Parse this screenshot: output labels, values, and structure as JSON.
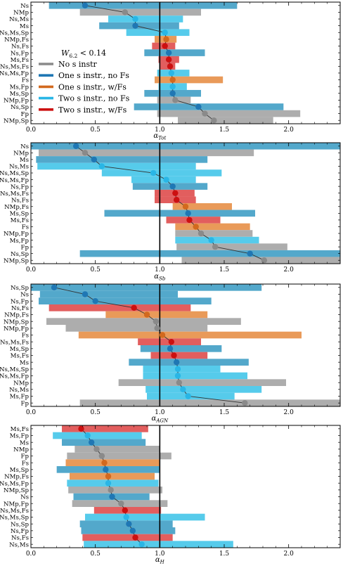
{
  "colors": {
    "none": "#a9a9a9",
    "one_nofs": "#4aa3c8",
    "one_fs": "#e89550",
    "two_nofs": "#4dc8ea",
    "two_fs": "#e05555",
    "none_dot": "#8a8a8a",
    "one_nofs_dot": "#1f77b4",
    "one_fs_dot": "#d2691e",
    "two_nofs_dot": "#29b6e6",
    "two_fs_dot": "#cc1010",
    "line": "#333333",
    "refline": "#000000"
  },
  "legend": {
    "title": "W_{6.2} < 0.14",
    "entries": [
      {
        "label": "No s instr",
        "cat": "none"
      },
      {
        "label": "One s instr., no Fs",
        "cat": "one_nofs"
      },
      {
        "label": "One s instr., w/Fs",
        "cat": "one_fs"
      },
      {
        "label": "Two s instr., no Fs",
        "cat": "two_nofs"
      },
      {
        "label": "Two s instr., w/Fs",
        "cat": "two_fs"
      }
    ]
  },
  "chart_data": [
    {
      "type": "bar",
      "xlabel": "α_Tot",
      "xlim": [
        0,
        2.4
      ],
      "xticks": [
        "0.0",
        "0.5",
        "1.0",
        "1.5",
        "2.0"
      ],
      "refline": 1.0,
      "rows": [
        {
          "label": "Ns",
          "cat": "one_nofs",
          "lo": 0.14,
          "hi": 1.6,
          "val": 0.42
        },
        {
          "label": "NMp",
          "cat": "none",
          "lo": 0.38,
          "hi": 1.32,
          "val": 0.73
        },
        {
          "label": "Ns,Ms",
          "cat": "two_nofs",
          "lo": 0.6,
          "hi": 1.18,
          "val": 0.81
        },
        {
          "label": "Ms",
          "cat": "one_nofs",
          "lo": 0.53,
          "hi": 1.15,
          "val": 0.81
        },
        {
          "label": "Ns,Ms,Sp",
          "cat": "two_nofs",
          "lo": 0.74,
          "hi": 1.23,
          "val": 1.04
        },
        {
          "label": "NMp,Fs",
          "cat": "one_fs",
          "lo": 0.96,
          "hi": 1.13,
          "val": 1.05
        },
        {
          "label": "Ns,Fs",
          "cat": "two_fs",
          "lo": 0.94,
          "hi": 1.12,
          "val": 1.04
        },
        {
          "label": "Ns,Fp",
          "cat": "one_nofs",
          "lo": 0.88,
          "hi": 1.35,
          "val": 1.07
        },
        {
          "label": "Ms,Fs",
          "cat": "two_fs",
          "lo": 0.99,
          "hi": 1.15,
          "val": 1.07
        },
        {
          "label": "Ns,Ms,Fs",
          "cat": "two_fs",
          "lo": 1.0,
          "hi": 1.12,
          "val": 1.08
        },
        {
          "label": "Ns,Ms,Fp",
          "cat": "two_nofs",
          "lo": 0.98,
          "hi": 1.23,
          "val": 1.09
        },
        {
          "label": "Fs",
          "cat": "one_fs",
          "lo": 0.96,
          "hi": 1.49,
          "val": 1.1
        },
        {
          "label": "Ms,Fp",
          "cat": "two_nofs",
          "lo": 0.99,
          "hi": 1.21,
          "val": 1.1
        },
        {
          "label": "Ms,Sp",
          "cat": "one_nofs",
          "lo": 0.88,
          "hi": 1.32,
          "val": 1.1
        },
        {
          "label": "NMp,Fp",
          "cat": "none",
          "lo": 0.98,
          "hi": 1.24,
          "val": 1.12
        },
        {
          "label": "Ns,Sp",
          "cat": "one_nofs",
          "lo": 0.8,
          "hi": 1.96,
          "val": 1.3
        },
        {
          "label": "Fp",
          "cat": "none",
          "lo": 0.98,
          "hi": 2.09,
          "val": 1.35
        },
        {
          "label": "NMp,Sp",
          "cat": "none",
          "lo": 1.14,
          "hi": 1.88,
          "val": 1.42
        }
      ]
    },
    {
      "type": "bar",
      "xlabel": "α_Sb",
      "xlim": [
        0,
        2.4
      ],
      "xticks": [
        "0.0",
        "0.5",
        "1.0",
        "1.5",
        "2.0"
      ],
      "refline": 1.0,
      "rows": [
        {
          "label": "Ns",
          "cat": "one_nofs",
          "lo": 0.0,
          "hi": 2.4,
          "val": 0.35
        },
        {
          "label": "NMp",
          "cat": "none",
          "lo": 0.06,
          "hi": 1.73,
          "val": 0.42
        },
        {
          "label": "Ms",
          "cat": "one_nofs",
          "lo": 0.04,
          "hi": 1.37,
          "val": 0.49
        },
        {
          "label": "Ns,Ms",
          "cat": "two_nofs",
          "lo": 0.05,
          "hi": 1.28,
          "val": 0.55
        },
        {
          "label": "Ns,Ms,Sp",
          "cat": "two_nofs",
          "lo": 0.55,
          "hi": 1.48,
          "val": 0.95
        },
        {
          "label": "Ns,Ms,Fp",
          "cat": "two_nofs",
          "lo": 0.78,
          "hi": 1.28,
          "val": 1.05
        },
        {
          "label": "Ns,Fp",
          "cat": "one_nofs",
          "lo": 0.79,
          "hi": 1.37,
          "val": 1.1
        },
        {
          "label": "Ns,Ms,Fs",
          "cat": "two_fs",
          "lo": 0.96,
          "hi": 1.27,
          "val": 1.12
        },
        {
          "label": "Ns,Fs",
          "cat": "two_fs",
          "lo": 0.96,
          "hi": 1.28,
          "val": 1.13
        },
        {
          "label": "NMp,Fs",
          "cat": "one_fs",
          "lo": 1.1,
          "hi": 1.56,
          "val": 1.2
        },
        {
          "label": "Ms,Sp",
          "cat": "one_nofs",
          "lo": 0.57,
          "hi": 1.74,
          "val": 1.22
        },
        {
          "label": "Ms,Fs",
          "cat": "two_fs",
          "lo": 1.05,
          "hi": 1.47,
          "val": 1.23
        },
        {
          "label": "Fs",
          "cat": "one_fs",
          "lo": 1.12,
          "hi": 1.7,
          "val": 1.28
        },
        {
          "label": "NMp,Fp",
          "cat": "none",
          "lo": 1.12,
          "hi": 1.72,
          "val": 1.32
        },
        {
          "label": "Ms,Fp",
          "cat": "two_nofs",
          "lo": 1.12,
          "hi": 1.77,
          "val": 1.4
        },
        {
          "label": "Fp",
          "cat": "none",
          "lo": 1.13,
          "hi": 1.99,
          "val": 1.43
        },
        {
          "label": "Ns,Sp",
          "cat": "one_nofs",
          "lo": 0.38,
          "hi": 2.4,
          "val": 1.7
        },
        {
          "label": "NMp,Sp",
          "cat": "none",
          "lo": 1.17,
          "hi": 2.4,
          "val": 1.81
        }
      ]
    },
    {
      "type": "bar",
      "xlabel": "α_AGN",
      "xlim": [
        0,
        2.4
      ],
      "xticks": [
        "0.0",
        "0.5",
        "1.0",
        "1.5",
        "2.0"
      ],
      "refline": 1.0,
      "rows": [
        {
          "label": "Ns,Sp",
          "cat": "one_nofs",
          "lo": 0.0,
          "hi": 1.79,
          "val": 0.18
        },
        {
          "label": "Ns",
          "cat": "one_nofs",
          "lo": 0.07,
          "hi": 1.14,
          "val": 0.42
        },
        {
          "label": "Ns,Fp",
          "cat": "one_nofs",
          "lo": 0.06,
          "hi": 1.4,
          "val": 0.5
        },
        {
          "label": "Ns,Fs",
          "cat": "two_fs",
          "lo": 0.14,
          "hi": 1.24,
          "val": 0.8
        },
        {
          "label": "NMp,Fs",
          "cat": "one_fs",
          "lo": 0.58,
          "hi": 1.37,
          "val": 0.9
        },
        {
          "label": "NMp,Sp",
          "cat": "none",
          "lo": 0.12,
          "hi": 1.63,
          "val": 0.97
        },
        {
          "label": "NMp,Fp",
          "cat": "none",
          "lo": 0.27,
          "hi": 1.37,
          "val": 0.98
        },
        {
          "label": "Fs",
          "cat": "one_fs",
          "lo": 0.37,
          "hi": 2.1,
          "val": 1.02
        },
        {
          "label": "Ns,Ms,Fs",
          "cat": "two_fs",
          "lo": 0.83,
          "hi": 1.32,
          "val": 1.09
        },
        {
          "label": "Ms,Sp",
          "cat": "one_nofs",
          "lo": 0.85,
          "hi": 1.48,
          "val": 1.08
        },
        {
          "label": "Ms,Fs",
          "cat": "two_fs",
          "lo": 0.93,
          "hi": 1.37,
          "val": 1.11
        },
        {
          "label": "Ms",
          "cat": "one_nofs",
          "lo": 0.76,
          "hi": 1.69,
          "val": 1.13
        },
        {
          "label": "Ns,Ms,Sp",
          "cat": "two_nofs",
          "lo": 0.87,
          "hi": 1.47,
          "val": 1.14
        },
        {
          "label": "Ns,Ms,Fp",
          "cat": "two_nofs",
          "lo": 0.87,
          "hi": 1.68,
          "val": 1.14
        },
        {
          "label": "NMp",
          "cat": "none",
          "lo": 0.68,
          "hi": 1.98,
          "val": 1.15
        },
        {
          "label": "Ns,Ms",
          "cat": "two_nofs",
          "lo": 0.89,
          "hi": 1.79,
          "val": 1.18
        },
        {
          "label": "Ms,Fp",
          "cat": "two_nofs",
          "lo": 0.9,
          "hi": 1.58,
          "val": 1.22
        },
        {
          "label": "Fp",
          "cat": "none",
          "lo": 0.38,
          "hi": 2.4,
          "val": 1.66
        }
      ]
    },
    {
      "type": "bar",
      "xlabel": "α_H",
      "xlim": [
        0,
        2.4
      ],
      "xticks": [
        "0.0",
        "0.5",
        "1.0",
        "1.5",
        "2.0"
      ],
      "refline": 1.0,
      "rows": [
        {
          "label": "Ms,Fs",
          "cat": "two_fs",
          "lo": 0.24,
          "hi": 0.91,
          "val": 0.39
        },
        {
          "label": "Ms,Fp",
          "cat": "two_nofs",
          "lo": 0.17,
          "hi": 0.86,
          "val": 0.44
        },
        {
          "label": "Ms",
          "cat": "one_nofs",
          "lo": 0.24,
          "hi": 0.89,
          "val": 0.47
        },
        {
          "label": "NMp",
          "cat": "none",
          "lo": 0.34,
          "hi": 1.0,
          "val": 0.51
        },
        {
          "label": "Fp",
          "cat": "none",
          "lo": 0.28,
          "hi": 1.09,
          "val": 0.55
        },
        {
          "label": "Fs",
          "cat": "one_fs",
          "lo": 0.27,
          "hi": 1.0,
          "val": 0.57
        },
        {
          "label": "Ms,Sp",
          "cat": "one_nofs",
          "lo": 0.2,
          "hi": 1.0,
          "val": 0.58
        },
        {
          "label": "NMp,Fs",
          "cat": "one_fs",
          "lo": 0.3,
          "hi": 0.96,
          "val": 0.6
        },
        {
          "label": "Ns,Ms,Fp",
          "cat": "two_nofs",
          "lo": 0.28,
          "hi": 0.99,
          "val": 0.6
        },
        {
          "label": "NMp,Sp",
          "cat": "none",
          "lo": 0.29,
          "hi": 1.02,
          "val": 0.62
        },
        {
          "label": "Ns",
          "cat": "one_nofs",
          "lo": 0.33,
          "hi": 0.92,
          "val": 0.63
        },
        {
          "label": "NMp,Fp",
          "cat": "none",
          "lo": 0.32,
          "hi": 1.06,
          "val": 0.7
        },
        {
          "label": "Ns,Ms,Fs",
          "cat": "two_fs",
          "lo": 0.49,
          "hi": 1.01,
          "val": 0.73
        },
        {
          "label": "Ns,Ms,Sp",
          "cat": "two_nofs",
          "lo": 0.42,
          "hi": 1.35,
          "val": 0.74
        },
        {
          "label": "Ns,Sp",
          "cat": "one_nofs",
          "lo": 0.38,
          "hi": 1.1,
          "val": 0.76
        },
        {
          "label": "Ns,Fp",
          "cat": "one_nofs",
          "lo": 0.39,
          "hi": 1.12,
          "val": 0.79
        },
        {
          "label": "Ns,Fs",
          "cat": "two_fs",
          "lo": 0.4,
          "hi": 1.1,
          "val": 0.81
        },
        {
          "label": "Ns,Ms",
          "cat": "two_nofs",
          "lo": 0.41,
          "hi": 1.57,
          "val": 0.86
        }
      ]
    }
  ]
}
